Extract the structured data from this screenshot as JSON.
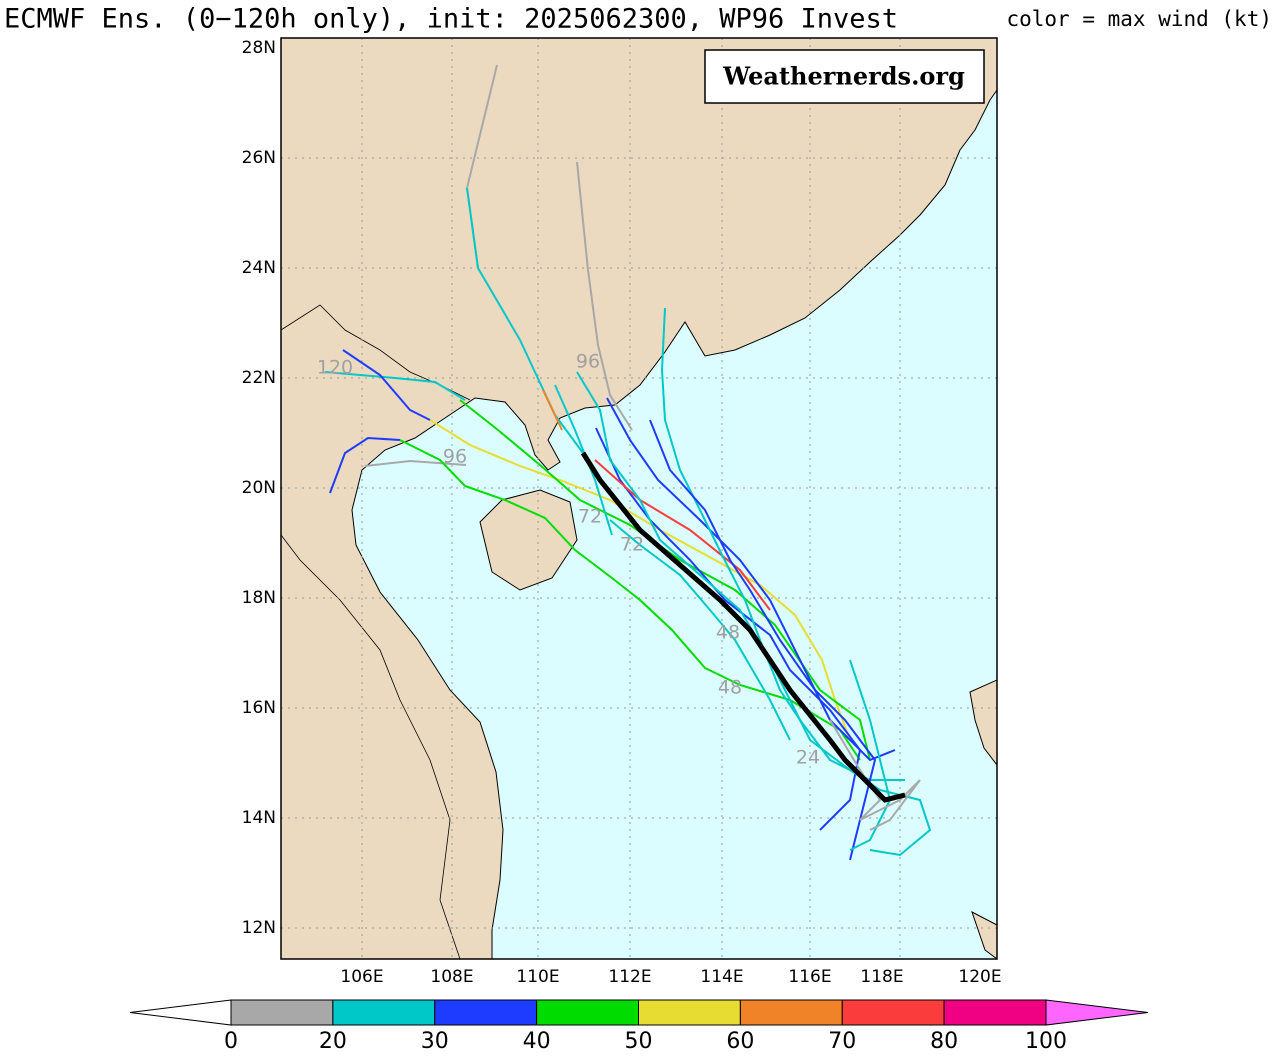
{
  "header": {
    "title": "ECMWF Ens. (0−120h only), init: 2025062300, WP96 Invest",
    "legend_note": "color = max wind (kt)"
  },
  "map": {
    "watermark": "Weathernerds.org",
    "lat_labels": [
      "28N",
      "26N",
      "24N",
      "22N",
      "20N",
      "18N",
      "16N",
      "14N",
      "12N"
    ],
    "lon_labels": [
      "106E",
      "108E",
      "110E",
      "112E",
      "114E",
      "116E",
      "118E",
      "120E"
    ],
    "track_labels": [
      "120",
      "96",
      "96",
      "72",
      "72",
      "48",
      "48",
      "24"
    ]
  },
  "colorbar": {
    "ticks": [
      0,
      20,
      30,
      40,
      50,
      60,
      70,
      80,
      100
    ],
    "colors": [
      "#a8a8a8",
      "#00c8c8",
      "#1e3cff",
      "#00dc00",
      "#e6dc32",
      "#f08228",
      "#fa3c3c",
      "#f00082"
    ],
    "under_color": "#ffffff",
    "over_color": "#ff66ff"
  }
}
